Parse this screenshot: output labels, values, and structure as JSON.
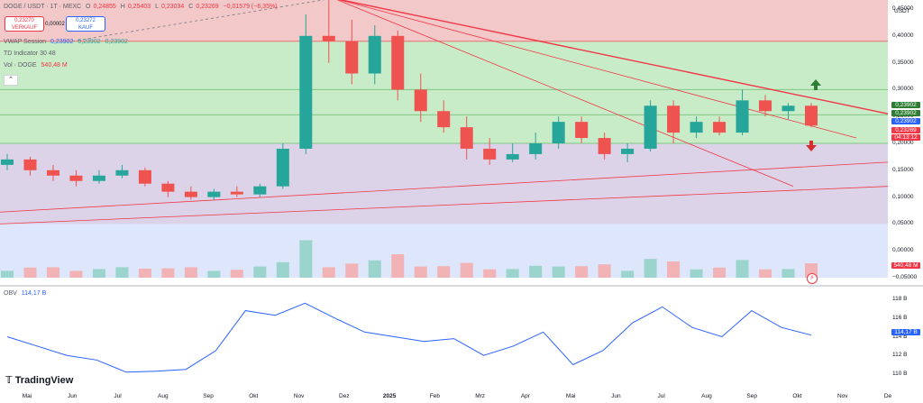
{
  "header": {
    "symbol": "DOGE / USDT · 1T · MEXC",
    "ohlc": {
      "open_label": "O",
      "open": "0,24855",
      "high_label": "H",
      "high": "0,25403",
      "low_label": "L",
      "low": "0,23034",
      "close_label": "C",
      "close": "0,23269",
      "change": "−0,01579 (−6,35%)"
    },
    "sell": {
      "price": "0,23270",
      "label": "VERKAUF"
    },
    "buy": {
      "price": "0,23272",
      "label": "KAUF"
    },
    "spread": "0,00002"
  },
  "indicators": {
    "vwap": {
      "name": "VWAP Session",
      "v1": "0,23902",
      "v2": "0,23902",
      "v3": "0,23902"
    },
    "td": {
      "name": "TD Indicator 30 48"
    },
    "vol": {
      "name": "Vol · DOGE",
      "value": "540,48 M"
    },
    "obv": {
      "name": "OBV",
      "value": "114,17 B"
    }
  },
  "price_axis": {
    "currency": "USDT",
    "ticks": [
      "0,45000",
      "0,40000",
      "0,35000",
      "0,30000",
      "0,25000",
      "0,20000",
      "0,15000",
      "0,10000",
      "0,05000",
      "0,00000",
      "−0,05000"
    ],
    "tags": {
      "vwap_top": "0,23902",
      "vwap_mid": "0,23902",
      "blue": "0,23902",
      "last_price": "0,23269",
      "countdown": "04:13:12",
      "volume": "540,48 M",
      "obv": "114,17 B"
    }
  },
  "obv_axis": {
    "ticks": [
      "118 B",
      "116 B",
      "114 B",
      "112 B",
      "110 B"
    ]
  },
  "time_axis": {
    "ticks": [
      "Mai",
      "Jun",
      "Jul",
      "Aug",
      "Sep",
      "Okt",
      "Nov",
      "Dez",
      "2025",
      "Feb",
      "Mrz",
      "Apr",
      "Mai",
      "Jun",
      "Jul",
      "Aug",
      "Sep",
      "Okt",
      "Nov",
      "De"
    ]
  },
  "branding": {
    "logo": "TradingView"
  },
  "colors": {
    "up": "#26a69a",
    "down": "#ef5350",
    "trend": "#f23645",
    "zone_red": "#f2c8c8",
    "zone_green": "#c8ebc8",
    "zone_purple": "#ddd3e8",
    "zone_blue": "#dde6fb",
    "obv_line": "#2962ff",
    "vwap_tag": "#2e7d32",
    "price_tag": "#f23645",
    "blue_tag": "#2962ff"
  },
  "chart_data": {
    "type": "candlestick",
    "series": [
      {
        "name": "DOGE / USDT",
        "type": "candlestick",
        "values": [
          [
            0.16,
            0.18,
            0.15,
            0.17
          ],
          [
            0.17,
            0.175,
            0.14,
            0.15
          ],
          [
            0.15,
            0.16,
            0.13,
            0.14
          ],
          [
            0.14,
            0.15,
            0.12,
            0.13
          ],
          [
            0.13,
            0.15,
            0.125,
            0.14
          ],
          [
            0.14,
            0.16,
            0.135,
            0.15
          ],
          [
            0.15,
            0.155,
            0.12,
            0.125
          ],
          [
            0.125,
            0.13,
            0.1,
            0.11
          ],
          [
            0.11,
            0.12,
            0.095,
            0.1
          ],
          [
            0.1,
            0.115,
            0.095,
            0.11
          ],
          [
            0.11,
            0.12,
            0.1,
            0.105
          ],
          [
            0.105,
            0.125,
            0.1,
            0.12
          ],
          [
            0.12,
            0.2,
            0.115,
            0.19
          ],
          [
            0.19,
            0.44,
            0.18,
            0.4
          ],
          [
            0.4,
            0.48,
            0.35,
            0.39
          ],
          [
            0.39,
            0.43,
            0.31,
            0.33
          ],
          [
            0.33,
            0.42,
            0.31,
            0.4
          ],
          [
            0.4,
            0.41,
            0.28,
            0.3
          ],
          [
            0.3,
            0.33,
            0.24,
            0.26
          ],
          [
            0.26,
            0.28,
            0.22,
            0.23
          ],
          [
            0.23,
            0.25,
            0.17,
            0.19
          ],
          [
            0.19,
            0.21,
            0.16,
            0.17
          ],
          [
            0.17,
            0.2,
            0.165,
            0.18
          ],
          [
            0.18,
            0.22,
            0.17,
            0.2
          ],
          [
            0.2,
            0.25,
            0.19,
            0.24
          ],
          [
            0.24,
            0.25,
            0.2,
            0.21
          ],
          [
            0.21,
            0.22,
            0.17,
            0.18
          ],
          [
            0.18,
            0.2,
            0.165,
            0.19
          ],
          [
            0.19,
            0.28,
            0.185,
            0.27
          ],
          [
            0.27,
            0.28,
            0.2,
            0.22
          ],
          [
            0.22,
            0.25,
            0.21,
            0.24
          ],
          [
            0.24,
            0.25,
            0.215,
            0.22
          ],
          [
            0.22,
            0.3,
            0.215,
            0.28
          ],
          [
            0.28,
            0.29,
            0.25,
            0.26
          ],
          [
            0.26,
            0.275,
            0.245,
            0.27
          ],
          [
            0.27,
            0.275,
            0.23,
            0.233
          ]
        ]
      }
    ],
    "obv": [
      114.0,
      113.0,
      112.0,
      111.5,
      110.2,
      110.3,
      110.5,
      112.5,
      116.8,
      116.3,
      117.6,
      116.0,
      114.5,
      114.0,
      113.5,
      113.8,
      112.0,
      113.0,
      114.5,
      111.0,
      112.5,
      115.5,
      117.2,
      115.0,
      114.0,
      116.8,
      115.0,
      114.17
    ],
    "xlabel": "",
    "ylabel": "USDT",
    "ylim": [
      -0.05,
      0.45
    ]
  }
}
